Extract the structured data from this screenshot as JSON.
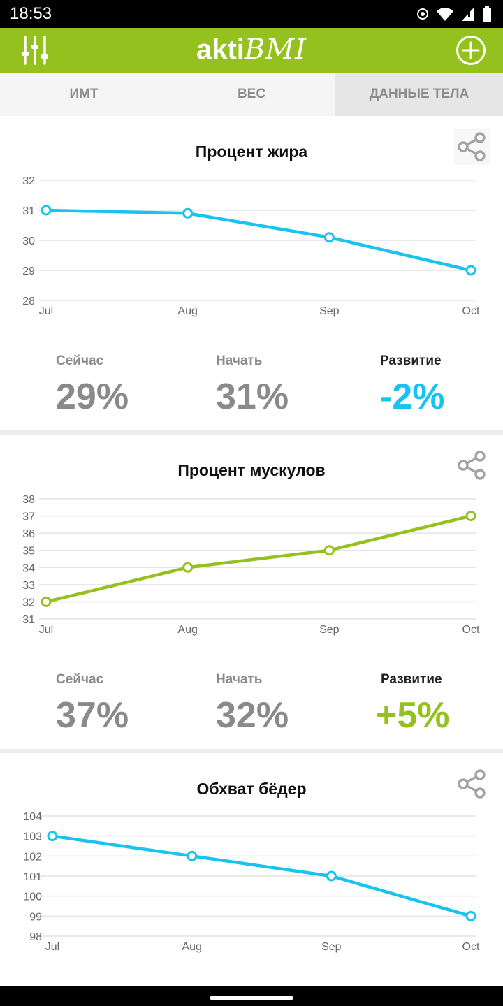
{
  "status_bar": {
    "time": "18:53"
  },
  "app_bar": {
    "logo_bold": "akti",
    "logo_script": "BMI"
  },
  "tabs": [
    {
      "label": "ИМТ",
      "active": false
    },
    {
      "label": "ВЕС",
      "active": false
    },
    {
      "label": "ДАННЫЕ ТЕЛА",
      "active": true
    }
  ],
  "colors": {
    "brand_green": "#95c11f",
    "line_blue": "#19c3f0",
    "line_green": "#95c11f",
    "stat_gray": "#8a8a8a"
  },
  "cards": [
    {
      "title": "Процент жира",
      "stats": {
        "now_label": "Сейчас",
        "now_value": "29%",
        "start_label": "Начать",
        "start_value": "31%",
        "progress_label": "Развитие",
        "progress_value": "-2%"
      }
    },
    {
      "title": "Процент мускулов",
      "stats": {
        "now_label": "Сейчас",
        "now_value": "37%",
        "start_label": "Начать",
        "start_value": "32%",
        "progress_label": "Развитие",
        "progress_value": "+5%"
      }
    },
    {
      "title": "Обхват бёдер"
    }
  ],
  "chart_data": [
    {
      "type": "line",
      "title": "Процент жира",
      "categories": [
        "Jul",
        "Aug",
        "Sep",
        "Oct"
      ],
      "series": [
        {
          "values": [
            31,
            30.9,
            30.1,
            29
          ]
        }
      ],
      "y_ticks": [
        28,
        29,
        30,
        31,
        32
      ],
      "ylim": [
        28,
        32
      ],
      "color": "#19c3f0",
      "grid": true
    },
    {
      "type": "line",
      "title": "Процент мускулов",
      "categories": [
        "Jul",
        "Aug",
        "Sep",
        "Oct"
      ],
      "series": [
        {
          "values": [
            32,
            34,
            35,
            37
          ]
        }
      ],
      "y_ticks": [
        31,
        32,
        33,
        34,
        35,
        36,
        37,
        38
      ],
      "ylim": [
        31,
        38
      ],
      "color": "#95c11f",
      "grid": true
    },
    {
      "type": "line",
      "title": "Обхват бёдер",
      "categories": [
        "Jul",
        "Aug",
        "Sep",
        "Oct"
      ],
      "series": [
        {
          "values": [
            103,
            102,
            101,
            99
          ]
        }
      ],
      "y_ticks": [
        98,
        99,
        100,
        101,
        102,
        103,
        104
      ],
      "ylim": [
        98,
        104
      ],
      "color": "#19c3f0",
      "grid": true
    }
  ]
}
